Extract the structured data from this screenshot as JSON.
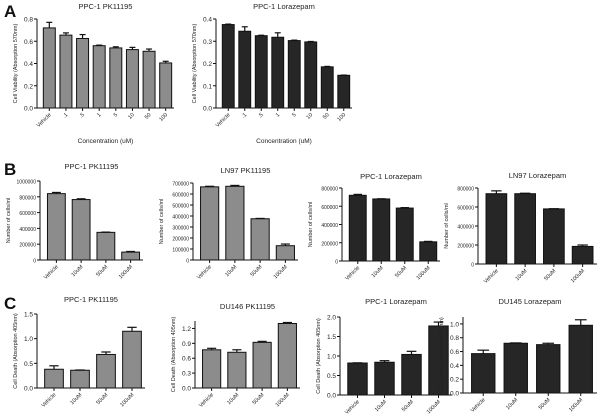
{
  "panel_labels": [
    "A",
    "B",
    "C"
  ],
  "colors": {
    "pk11195": "#8c8c8c",
    "lorazepam": "#262626",
    "axis": "#111111"
  },
  "chart_data": [
    {
      "type": "bar",
      "panel": "A",
      "title": "PPC-1 PK11195",
      "xlabel": "Concentration (uM)",
      "ylabel": "Cell Viability (Absorption 570nm)",
      "categories": [
        "Vehicle",
        ".1",
        ".5",
        "1",
        "5",
        "10",
        "50",
        "100"
      ],
      "values": [
        0.72,
        0.655,
        0.625,
        0.56,
        0.54,
        0.525,
        0.51,
        0.405
      ],
      "errors": [
        0.05,
        0.02,
        0.035,
        0.005,
        0.01,
        0.02,
        0.02,
        0.015
      ],
      "ylim": [
        0,
        0.8
      ],
      "yticks": [
        "0.0",
        "0.2",
        "0.4",
        "0.6",
        "0.8"
      ],
      "color": "#8c8c8c",
      "grid": false
    },
    {
      "type": "bar",
      "panel": "A",
      "title": "PPC-1 Lorazepam",
      "xlabel": "Concentration (uM)",
      "ylabel": "Cell Viability (Absorption 570nm)",
      "categories": [
        "Vehicle",
        ".1",
        ".5",
        "1",
        "5",
        "10",
        "50",
        "100"
      ],
      "values": [
        0.375,
        0.345,
        0.325,
        0.318,
        0.303,
        0.297,
        0.185,
        0.147
      ],
      "errors": [
        0.002,
        0.02,
        0.002,
        0.02,
        0.002,
        0.002,
        0.002,
        0.001
      ],
      "ylim": [
        0,
        0.4
      ],
      "yticks": [
        "0.0",
        "0.1",
        "0.2",
        "0.3",
        "0.4"
      ],
      "color": "#262626",
      "grid": false
    },
    {
      "type": "bar",
      "panel": "B",
      "title": "PPC-1 PK11195",
      "xlabel": "",
      "ylabel": "Number of cells/ml",
      "categories": [
        "Vehicle",
        "10uM",
        "50uM",
        "100uM"
      ],
      "values": [
        840000,
        765000,
        350000,
        100000
      ],
      "errors": [
        15000,
        10000,
        3000,
        8000
      ],
      "ylim": [
        0,
        1000000
      ],
      "yticks": [
        "0",
        "200000",
        "400000",
        "600000",
        "800000",
        "1000000"
      ],
      "color": "#8c8c8c",
      "grid": false
    },
    {
      "type": "bar",
      "panel": "B",
      "title": "LN97 PK11195",
      "xlabel": "",
      "ylabel": "Number of cells/ml",
      "categories": [
        "Vehicle",
        "10uM",
        "50uM",
        "100uM"
      ],
      "values": [
        665000,
        670000,
        375000,
        130000
      ],
      "errors": [
        5000,
        8000,
        3000,
        15000
      ],
      "ylim": [
        0,
        700000
      ],
      "yticks": [
        "0",
        "100000",
        "200000",
        "300000",
        "400000",
        "500000",
        "600000",
        "700000"
      ],
      "color": "#8c8c8c",
      "grid": false
    },
    {
      "type": "bar",
      "panel": "B",
      "title": "PPC-1 Lorazepam",
      "xlabel": "",
      "ylabel": "Number of cells/ml",
      "categories": [
        "Vehicle",
        "10uM",
        "50uM",
        "100uM"
      ],
      "values": [
        720000,
        680000,
        580000,
        210000
      ],
      "errors": [
        10000,
        2000,
        5000,
        5000
      ],
      "ylim": [
        0,
        800000
      ],
      "yticks": [
        "0",
        "200000",
        "400000",
        "600000",
        "800000"
      ],
      "color": "#262626",
      "grid": false
    },
    {
      "type": "bar",
      "panel": "B",
      "title": "LN97 Lorazepam",
      "xlabel": "",
      "ylabel": "Number of cells/ml",
      "categories": [
        "Vehicle",
        "10uM",
        "50uM",
        "100uM"
      ],
      "values": [
        740000,
        740000,
        580000,
        185000
      ],
      "errors": [
        30000,
        5000,
        2000,
        15000
      ],
      "ylim": [
        0,
        800000
      ],
      "yticks": [
        "0",
        "200000",
        "400000",
        "600000",
        "800000"
      ],
      "color": "#262626",
      "grid": false
    },
    {
      "type": "bar",
      "panel": "C",
      "title": "PPC-1 PK11195",
      "xlabel": "",
      "ylabel": "Cell Death (Absorption 405nm)",
      "categories": [
        "Vehicle",
        "10uM",
        "50uM",
        "100uM"
      ],
      "values": [
        0.38,
        0.36,
        0.68,
        1.15
      ],
      "errors": [
        0.07,
        0.005,
        0.05,
        0.08
      ],
      "ylim": [
        0,
        1.5
      ],
      "yticks": [
        "0.0",
        "0.5",
        "1.0",
        "1.5"
      ],
      "color": "#8c8c8c",
      "grid": false
    },
    {
      "type": "bar",
      "panel": "C",
      "title": "DU146 PK11195",
      "xlabel": "",
      "ylabel": "Cell Death (Absorption 405nm)",
      "categories": [
        "Vehicle",
        "10uM",
        "50uM",
        "100uM"
      ],
      "values": [
        0.77,
        0.72,
        0.92,
        1.3
      ],
      "errors": [
        0.03,
        0.05,
        0.02,
        0.02
      ],
      "ylim": [
        0,
        1.35
      ],
      "yticks": [
        "0.0",
        "0.3",
        "0.6",
        "0.9",
        "1.2"
      ],
      "color": "#8c8c8c",
      "grid": false
    },
    {
      "type": "bar",
      "panel": "C",
      "title": "PPC-1 Lorazepam",
      "xlabel": "",
      "ylabel": "Cell Death (Absorption 405nm)",
      "categories": [
        "Vehicle",
        "10uM",
        "50uM",
        "100uM"
      ],
      "values": [
        0.82,
        0.84,
        1.04,
        1.77
      ],
      "errors": [
        0.005,
        0.04,
        0.08,
        0.1
      ],
      "ylim": [
        0,
        2.0
      ],
      "yticks": [
        "0.0",
        "0.5",
        "1.0",
        "1.5",
        "2.0"
      ],
      "color": "#262626",
      "grid": false
    },
    {
      "type": "bar",
      "panel": "C",
      "title": "DU145 Lorazepam",
      "xlabel": "",
      "ylabel": "Cell Death (Absorption 405nm)",
      "categories": [
        "Vehicle",
        "10uM",
        "50uM",
        "100uM"
      ],
      "values": [
        0.57,
        0.72,
        0.7,
        0.98
      ],
      "errors": [
        0.05,
        0.005,
        0.02,
        0.08
      ],
      "ylim": [
        0,
        1.1
      ],
      "yticks": [
        "0.0",
        "0.2",
        "0.4",
        "0.6",
        "0.8",
        "1.0"
      ],
      "color": "#262626",
      "grid": false
    }
  ]
}
